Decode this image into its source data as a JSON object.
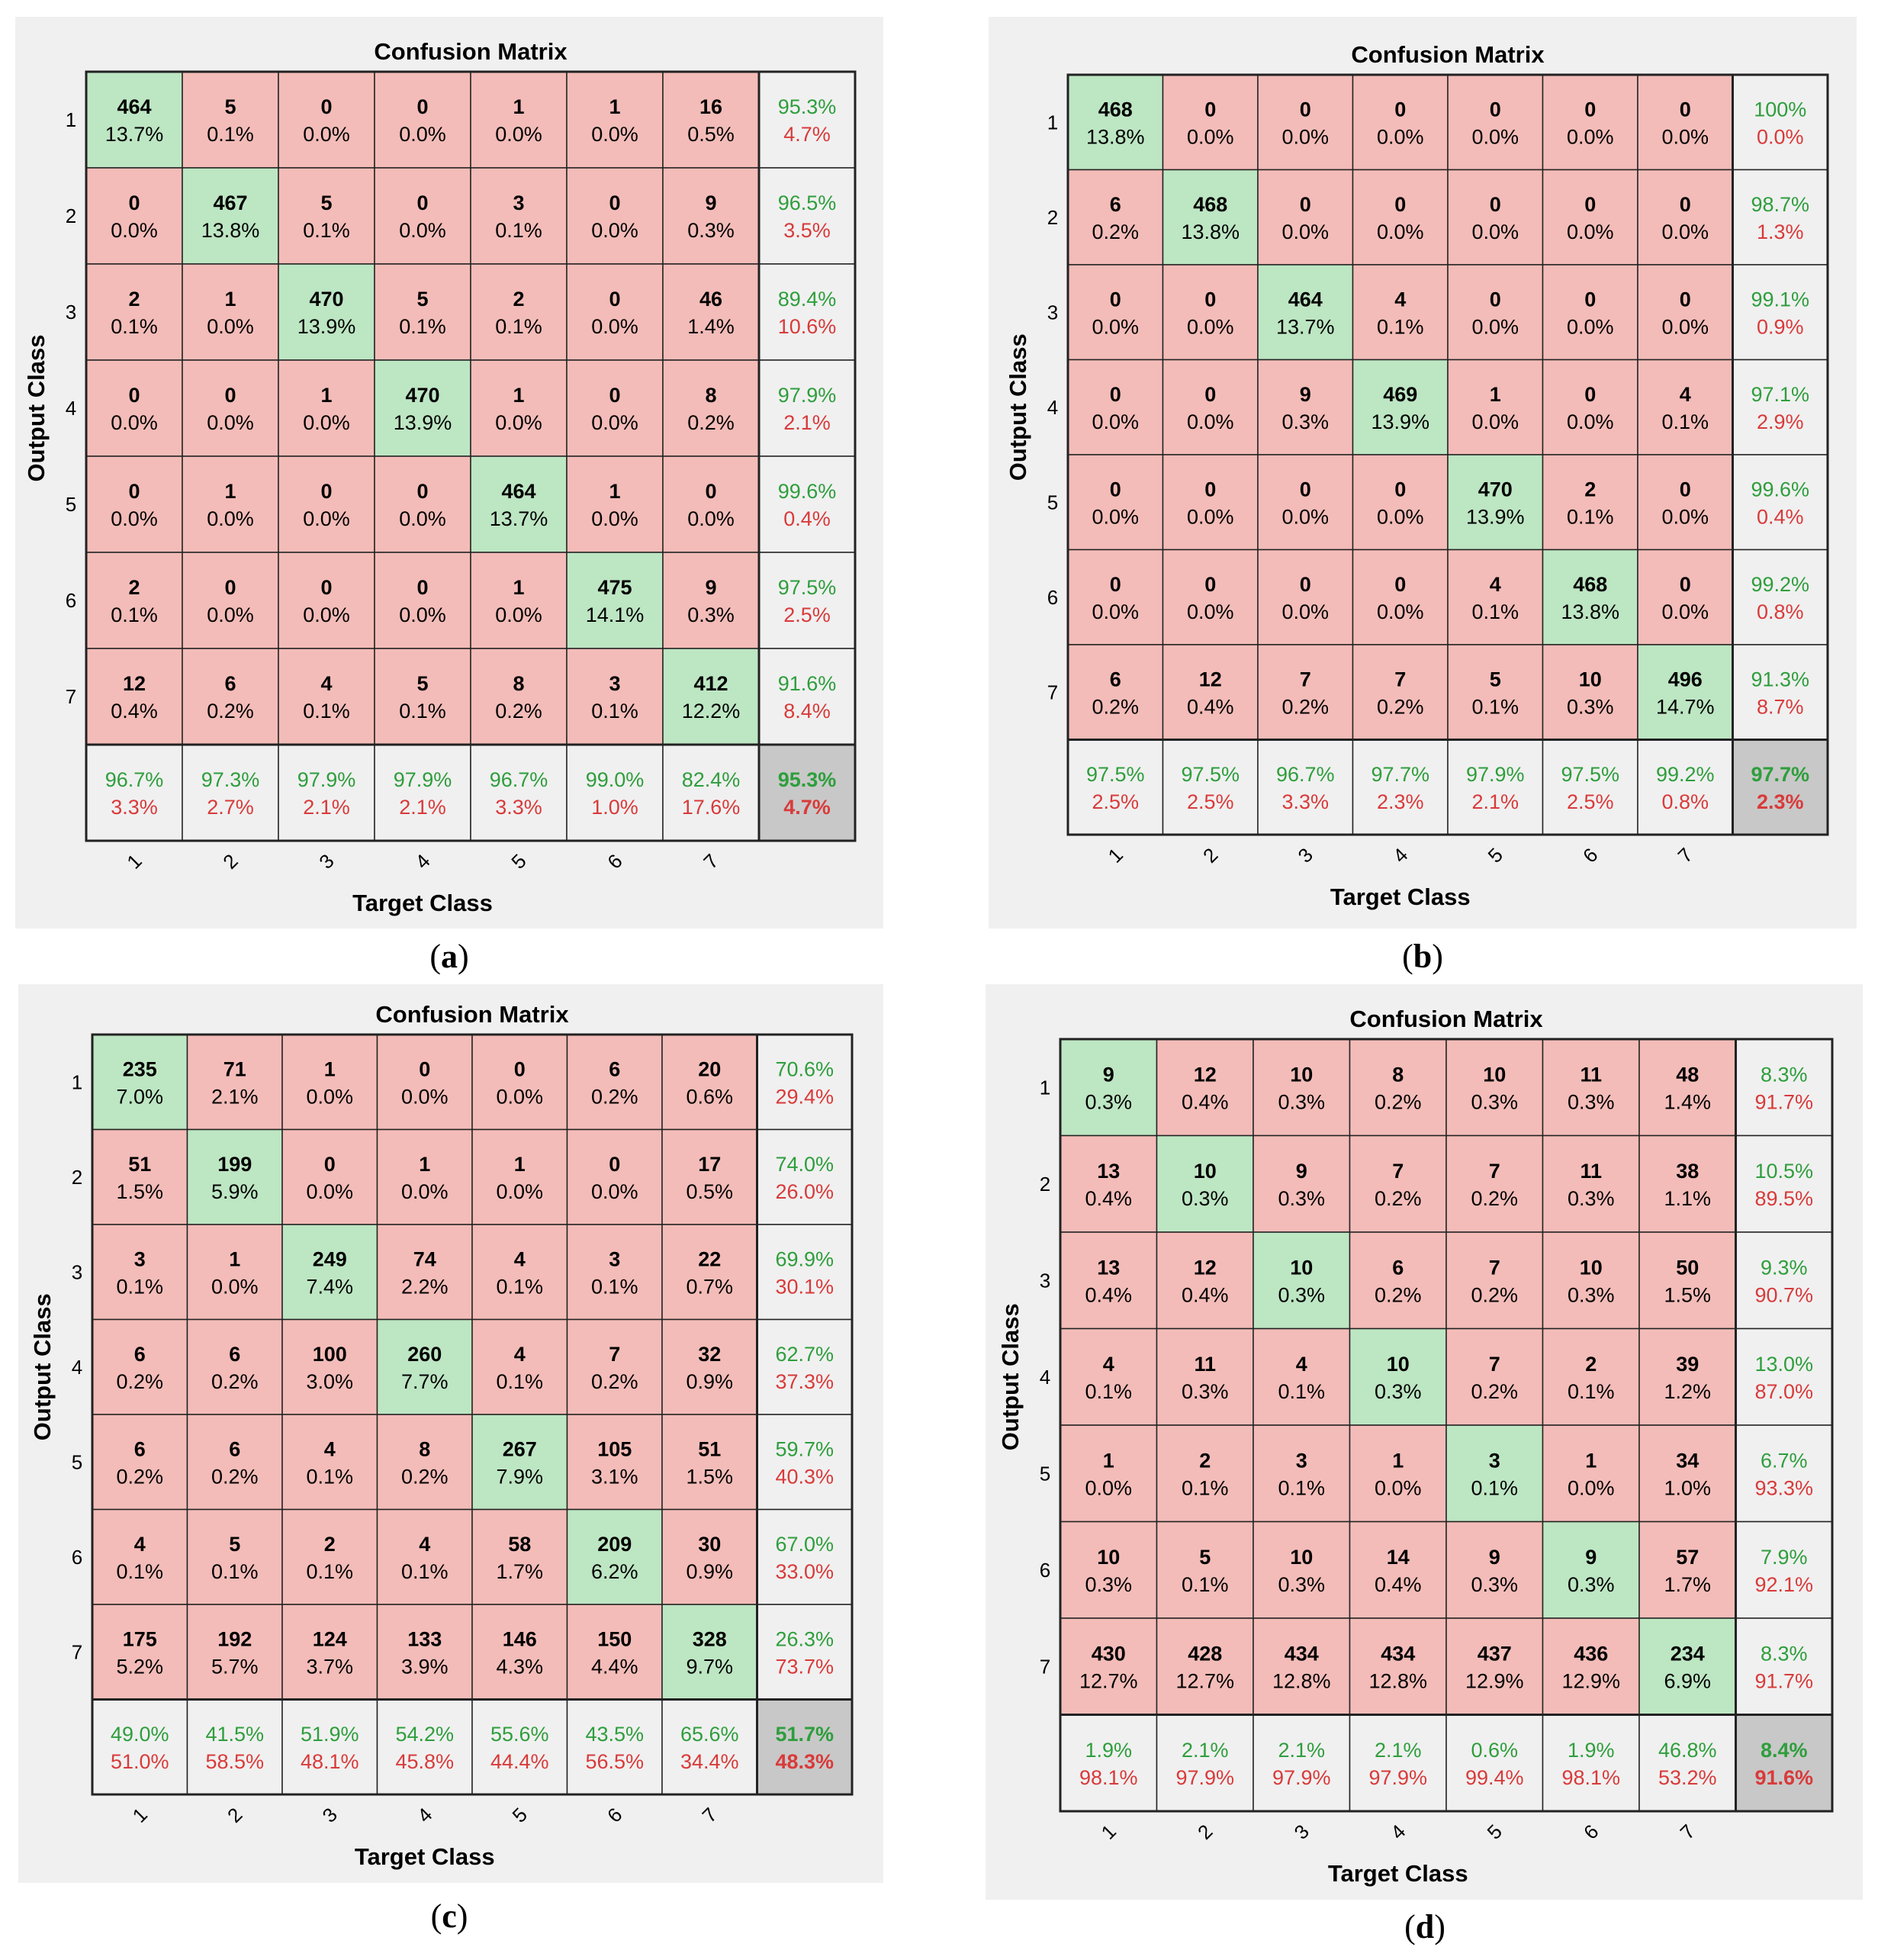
{
  "chart_data": [
    {
      "type": "heatmap",
      "caption": "a",
      "title": "Confusion Matrix",
      "xlabel": "Target Class",
      "ylabel": "Output Class",
      "classes": [
        "1",
        "2",
        "3",
        "4",
        "5",
        "6",
        "7"
      ],
      "cells": [
        [
          [
            "464",
            "13.7%"
          ],
          [
            "5",
            "0.1%"
          ],
          [
            "0",
            "0.0%"
          ],
          [
            "0",
            "0.0%"
          ],
          [
            "1",
            "0.0%"
          ],
          [
            "1",
            "0.0%"
          ],
          [
            "16",
            "0.5%"
          ]
        ],
        [
          [
            "0",
            "0.0%"
          ],
          [
            "467",
            "13.8%"
          ],
          [
            "5",
            "0.1%"
          ],
          [
            "0",
            "0.0%"
          ],
          [
            "3",
            "0.1%"
          ],
          [
            "0",
            "0.0%"
          ],
          [
            "9",
            "0.3%"
          ]
        ],
        [
          [
            "2",
            "0.1%"
          ],
          [
            "1",
            "0.0%"
          ],
          [
            "470",
            "13.9%"
          ],
          [
            "5",
            "0.1%"
          ],
          [
            "2",
            "0.1%"
          ],
          [
            "0",
            "0.0%"
          ],
          [
            "46",
            "1.4%"
          ]
        ],
        [
          [
            "0",
            "0.0%"
          ],
          [
            "0",
            "0.0%"
          ],
          [
            "1",
            "0.0%"
          ],
          [
            "470",
            "13.9%"
          ],
          [
            "1",
            "0.0%"
          ],
          [
            "0",
            "0.0%"
          ],
          [
            "8",
            "0.2%"
          ]
        ],
        [
          [
            "0",
            "0.0%"
          ],
          [
            "1",
            "0.0%"
          ],
          [
            "0",
            "0.0%"
          ],
          [
            "0",
            "0.0%"
          ],
          [
            "464",
            "13.7%"
          ],
          [
            "1",
            "0.0%"
          ],
          [
            "0",
            "0.0%"
          ]
        ],
        [
          [
            "2",
            "0.1%"
          ],
          [
            "0",
            "0.0%"
          ],
          [
            "0",
            "0.0%"
          ],
          [
            "0",
            "0.0%"
          ],
          [
            "1",
            "0.0%"
          ],
          [
            "475",
            "14.1%"
          ],
          [
            "9",
            "0.3%"
          ]
        ],
        [
          [
            "12",
            "0.4%"
          ],
          [
            "6",
            "0.2%"
          ],
          [
            "4",
            "0.1%"
          ],
          [
            "5",
            "0.1%"
          ],
          [
            "8",
            "0.2%"
          ],
          [
            "3",
            "0.1%"
          ],
          [
            "412",
            "12.2%"
          ]
        ]
      ],
      "row_summary": [
        [
          "95.3%",
          "4.7%"
        ],
        [
          "96.5%",
          "3.5%"
        ],
        [
          "89.4%",
          "10.6%"
        ],
        [
          "97.9%",
          "2.1%"
        ],
        [
          "99.6%",
          "0.4%"
        ],
        [
          "97.5%",
          "2.5%"
        ],
        [
          "91.6%",
          "8.4%"
        ]
      ],
      "col_summary": [
        [
          "96.7%",
          "3.3%"
        ],
        [
          "97.3%",
          "2.7%"
        ],
        [
          "97.9%",
          "2.1%"
        ],
        [
          "97.9%",
          "2.1%"
        ],
        [
          "96.7%",
          "3.3%"
        ],
        [
          "99.0%",
          "1.0%"
        ],
        [
          "82.4%",
          "17.6%"
        ]
      ],
      "overall": [
        "95.3%",
        "4.7%"
      ]
    },
    {
      "type": "heatmap",
      "caption": "b",
      "title": "Confusion Matrix",
      "xlabel": "Target Class",
      "ylabel": "Output Class",
      "classes": [
        "1",
        "2",
        "3",
        "4",
        "5",
        "6",
        "7"
      ],
      "cells": [
        [
          [
            "468",
            "13.8%"
          ],
          [
            "0",
            "0.0%"
          ],
          [
            "0",
            "0.0%"
          ],
          [
            "0",
            "0.0%"
          ],
          [
            "0",
            "0.0%"
          ],
          [
            "0",
            "0.0%"
          ],
          [
            "0",
            "0.0%"
          ]
        ],
        [
          [
            "6",
            "0.2%"
          ],
          [
            "468",
            "13.8%"
          ],
          [
            "0",
            "0.0%"
          ],
          [
            "0",
            "0.0%"
          ],
          [
            "0",
            "0.0%"
          ],
          [
            "0",
            "0.0%"
          ],
          [
            "0",
            "0.0%"
          ]
        ],
        [
          [
            "0",
            "0.0%"
          ],
          [
            "0",
            "0.0%"
          ],
          [
            "464",
            "13.7%"
          ],
          [
            "4",
            "0.1%"
          ],
          [
            "0",
            "0.0%"
          ],
          [
            "0",
            "0.0%"
          ],
          [
            "0",
            "0.0%"
          ]
        ],
        [
          [
            "0",
            "0.0%"
          ],
          [
            "0",
            "0.0%"
          ],
          [
            "9",
            "0.3%"
          ],
          [
            "469",
            "13.9%"
          ],
          [
            "1",
            "0.0%"
          ],
          [
            "0",
            "0.0%"
          ],
          [
            "4",
            "0.1%"
          ]
        ],
        [
          [
            "0",
            "0.0%"
          ],
          [
            "0",
            "0.0%"
          ],
          [
            "0",
            "0.0%"
          ],
          [
            "0",
            "0.0%"
          ],
          [
            "470",
            "13.9%"
          ],
          [
            "2",
            "0.1%"
          ],
          [
            "0",
            "0.0%"
          ]
        ],
        [
          [
            "0",
            "0.0%"
          ],
          [
            "0",
            "0.0%"
          ],
          [
            "0",
            "0.0%"
          ],
          [
            "0",
            "0.0%"
          ],
          [
            "4",
            "0.1%"
          ],
          [
            "468",
            "13.8%"
          ],
          [
            "0",
            "0.0%"
          ]
        ],
        [
          [
            "6",
            "0.2%"
          ],
          [
            "12",
            "0.4%"
          ],
          [
            "7",
            "0.2%"
          ],
          [
            "7",
            "0.2%"
          ],
          [
            "5",
            "0.1%"
          ],
          [
            "10",
            "0.3%"
          ],
          [
            "496",
            "14.7%"
          ]
        ]
      ],
      "row_summary": [
        [
          "100%",
          "0.0%"
        ],
        [
          "98.7%",
          "1.3%"
        ],
        [
          "99.1%",
          "0.9%"
        ],
        [
          "97.1%",
          "2.9%"
        ],
        [
          "99.6%",
          "0.4%"
        ],
        [
          "99.2%",
          "0.8%"
        ],
        [
          "91.3%",
          "8.7%"
        ]
      ],
      "col_summary": [
        [
          "97.5%",
          "2.5%"
        ],
        [
          "97.5%",
          "2.5%"
        ],
        [
          "96.7%",
          "3.3%"
        ],
        [
          "97.7%",
          "2.3%"
        ],
        [
          "97.9%",
          "2.1%"
        ],
        [
          "97.5%",
          "2.5%"
        ],
        [
          "99.2%",
          "0.8%"
        ]
      ],
      "overall": [
        "97.7%",
        "2.3%"
      ]
    },
    {
      "type": "heatmap",
      "caption": "c",
      "title": "Confusion Matrix",
      "xlabel": "Target Class",
      "ylabel": "Output Class",
      "classes": [
        "1",
        "2",
        "3",
        "4",
        "5",
        "6",
        "7"
      ],
      "cells": [
        [
          [
            "235",
            "7.0%"
          ],
          [
            "71",
            "2.1%"
          ],
          [
            "1",
            "0.0%"
          ],
          [
            "0",
            "0.0%"
          ],
          [
            "0",
            "0.0%"
          ],
          [
            "6",
            "0.2%"
          ],
          [
            "20",
            "0.6%"
          ]
        ],
        [
          [
            "51",
            "1.5%"
          ],
          [
            "199",
            "5.9%"
          ],
          [
            "0",
            "0.0%"
          ],
          [
            "1",
            "0.0%"
          ],
          [
            "1",
            "0.0%"
          ],
          [
            "0",
            "0.0%"
          ],
          [
            "17",
            "0.5%"
          ]
        ],
        [
          [
            "3",
            "0.1%"
          ],
          [
            "1",
            "0.0%"
          ],
          [
            "249",
            "7.4%"
          ],
          [
            "74",
            "2.2%"
          ],
          [
            "4",
            "0.1%"
          ],
          [
            "3",
            "0.1%"
          ],
          [
            "22",
            "0.7%"
          ]
        ],
        [
          [
            "6",
            "0.2%"
          ],
          [
            "6",
            "0.2%"
          ],
          [
            "100",
            "3.0%"
          ],
          [
            "260",
            "7.7%"
          ],
          [
            "4",
            "0.1%"
          ],
          [
            "7",
            "0.2%"
          ],
          [
            "32",
            "0.9%"
          ]
        ],
        [
          [
            "6",
            "0.2%"
          ],
          [
            "6",
            "0.2%"
          ],
          [
            "4",
            "0.1%"
          ],
          [
            "8",
            "0.2%"
          ],
          [
            "267",
            "7.9%"
          ],
          [
            "105",
            "3.1%"
          ],
          [
            "51",
            "1.5%"
          ]
        ],
        [
          [
            "4",
            "0.1%"
          ],
          [
            "5",
            "0.1%"
          ],
          [
            "2",
            "0.1%"
          ],
          [
            "4",
            "0.1%"
          ],
          [
            "58",
            "1.7%"
          ],
          [
            "209",
            "6.2%"
          ],
          [
            "30",
            "0.9%"
          ]
        ],
        [
          [
            "175",
            "5.2%"
          ],
          [
            "192",
            "5.7%"
          ],
          [
            "124",
            "3.7%"
          ],
          [
            "133",
            "3.9%"
          ],
          [
            "146",
            "4.3%"
          ],
          [
            "150",
            "4.4%"
          ],
          [
            "328",
            "9.7%"
          ]
        ]
      ],
      "row_summary": [
        [
          "70.6%",
          "29.4%"
        ],
        [
          "74.0%",
          "26.0%"
        ],
        [
          "69.9%",
          "30.1%"
        ],
        [
          "62.7%",
          "37.3%"
        ],
        [
          "59.7%",
          "40.3%"
        ],
        [
          "67.0%",
          "33.0%"
        ],
        [
          "26.3%",
          "73.7%"
        ]
      ],
      "col_summary": [
        [
          "49.0%",
          "51.0%"
        ],
        [
          "41.5%",
          "58.5%"
        ],
        [
          "51.9%",
          "48.1%"
        ],
        [
          "54.2%",
          "45.8%"
        ],
        [
          "55.6%",
          "44.4%"
        ],
        [
          "43.5%",
          "56.5%"
        ],
        [
          "65.6%",
          "34.4%"
        ]
      ],
      "overall": [
        "51.7%",
        "48.3%"
      ]
    },
    {
      "type": "heatmap",
      "caption": "d",
      "title": "Confusion Matrix",
      "xlabel": "Target Class",
      "ylabel": "Output Class",
      "classes": [
        "1",
        "2",
        "3",
        "4",
        "5",
        "6",
        "7"
      ],
      "cells": [
        [
          [
            "9",
            "0.3%"
          ],
          [
            "12",
            "0.4%"
          ],
          [
            "10",
            "0.3%"
          ],
          [
            "8",
            "0.2%"
          ],
          [
            "10",
            "0.3%"
          ],
          [
            "11",
            "0.3%"
          ],
          [
            "48",
            "1.4%"
          ]
        ],
        [
          [
            "13",
            "0.4%"
          ],
          [
            "10",
            "0.3%"
          ],
          [
            "9",
            "0.3%"
          ],
          [
            "7",
            "0.2%"
          ],
          [
            "7",
            "0.2%"
          ],
          [
            "11",
            "0.3%"
          ],
          [
            "38",
            "1.1%"
          ]
        ],
        [
          [
            "13",
            "0.4%"
          ],
          [
            "12",
            "0.4%"
          ],
          [
            "10",
            "0.3%"
          ],
          [
            "6",
            "0.2%"
          ],
          [
            "7",
            "0.2%"
          ],
          [
            "10",
            "0.3%"
          ],
          [
            "50",
            "1.5%"
          ]
        ],
        [
          [
            "4",
            "0.1%"
          ],
          [
            "11",
            "0.3%"
          ],
          [
            "4",
            "0.1%"
          ],
          [
            "10",
            "0.3%"
          ],
          [
            "7",
            "0.2%"
          ],
          [
            "2",
            "0.1%"
          ],
          [
            "39",
            "1.2%"
          ]
        ],
        [
          [
            "1",
            "0.0%"
          ],
          [
            "2",
            "0.1%"
          ],
          [
            "3",
            "0.1%"
          ],
          [
            "1",
            "0.0%"
          ],
          [
            "3",
            "0.1%"
          ],
          [
            "1",
            "0.0%"
          ],
          [
            "34",
            "1.0%"
          ]
        ],
        [
          [
            "10",
            "0.3%"
          ],
          [
            "5",
            "0.1%"
          ],
          [
            "10",
            "0.3%"
          ],
          [
            "14",
            "0.4%"
          ],
          [
            "9",
            "0.3%"
          ],
          [
            "9",
            "0.3%"
          ],
          [
            "57",
            "1.7%"
          ]
        ],
        [
          [
            "430",
            "12.7%"
          ],
          [
            "428",
            "12.7%"
          ],
          [
            "434",
            "12.8%"
          ],
          [
            "434",
            "12.8%"
          ],
          [
            "437",
            "12.9%"
          ],
          [
            "436",
            "12.9%"
          ],
          [
            "234",
            "6.9%"
          ]
        ]
      ],
      "row_summary": [
        [
          "8.3%",
          "91.7%"
        ],
        [
          "10.5%",
          "89.5%"
        ],
        [
          "9.3%",
          "90.7%"
        ],
        [
          "13.0%",
          "87.0%"
        ],
        [
          "6.7%",
          "93.3%"
        ],
        [
          "7.9%",
          "92.1%"
        ],
        [
          "8.3%",
          "91.7%"
        ]
      ],
      "col_summary": [
        [
          "1.9%",
          "98.1%"
        ],
        [
          "2.1%",
          "97.9%"
        ],
        [
          "2.1%",
          "97.9%"
        ],
        [
          "2.1%",
          "97.9%"
        ],
        [
          "0.6%",
          "99.4%"
        ],
        [
          "1.9%",
          "98.1%"
        ],
        [
          "46.8%",
          "53.2%"
        ]
      ],
      "overall": [
        "8.4%",
        "91.6%"
      ]
    }
  ],
  "colors": {
    "diagonal": "#bde6c3",
    "offdiagonal": "#f3bcb8",
    "summary": "#f0f0f0",
    "overall": "#c8c8c8",
    "correct_text": "#2e9e3c",
    "error_text": "#d93a3a",
    "panel_bg": "#f0f0f0"
  }
}
